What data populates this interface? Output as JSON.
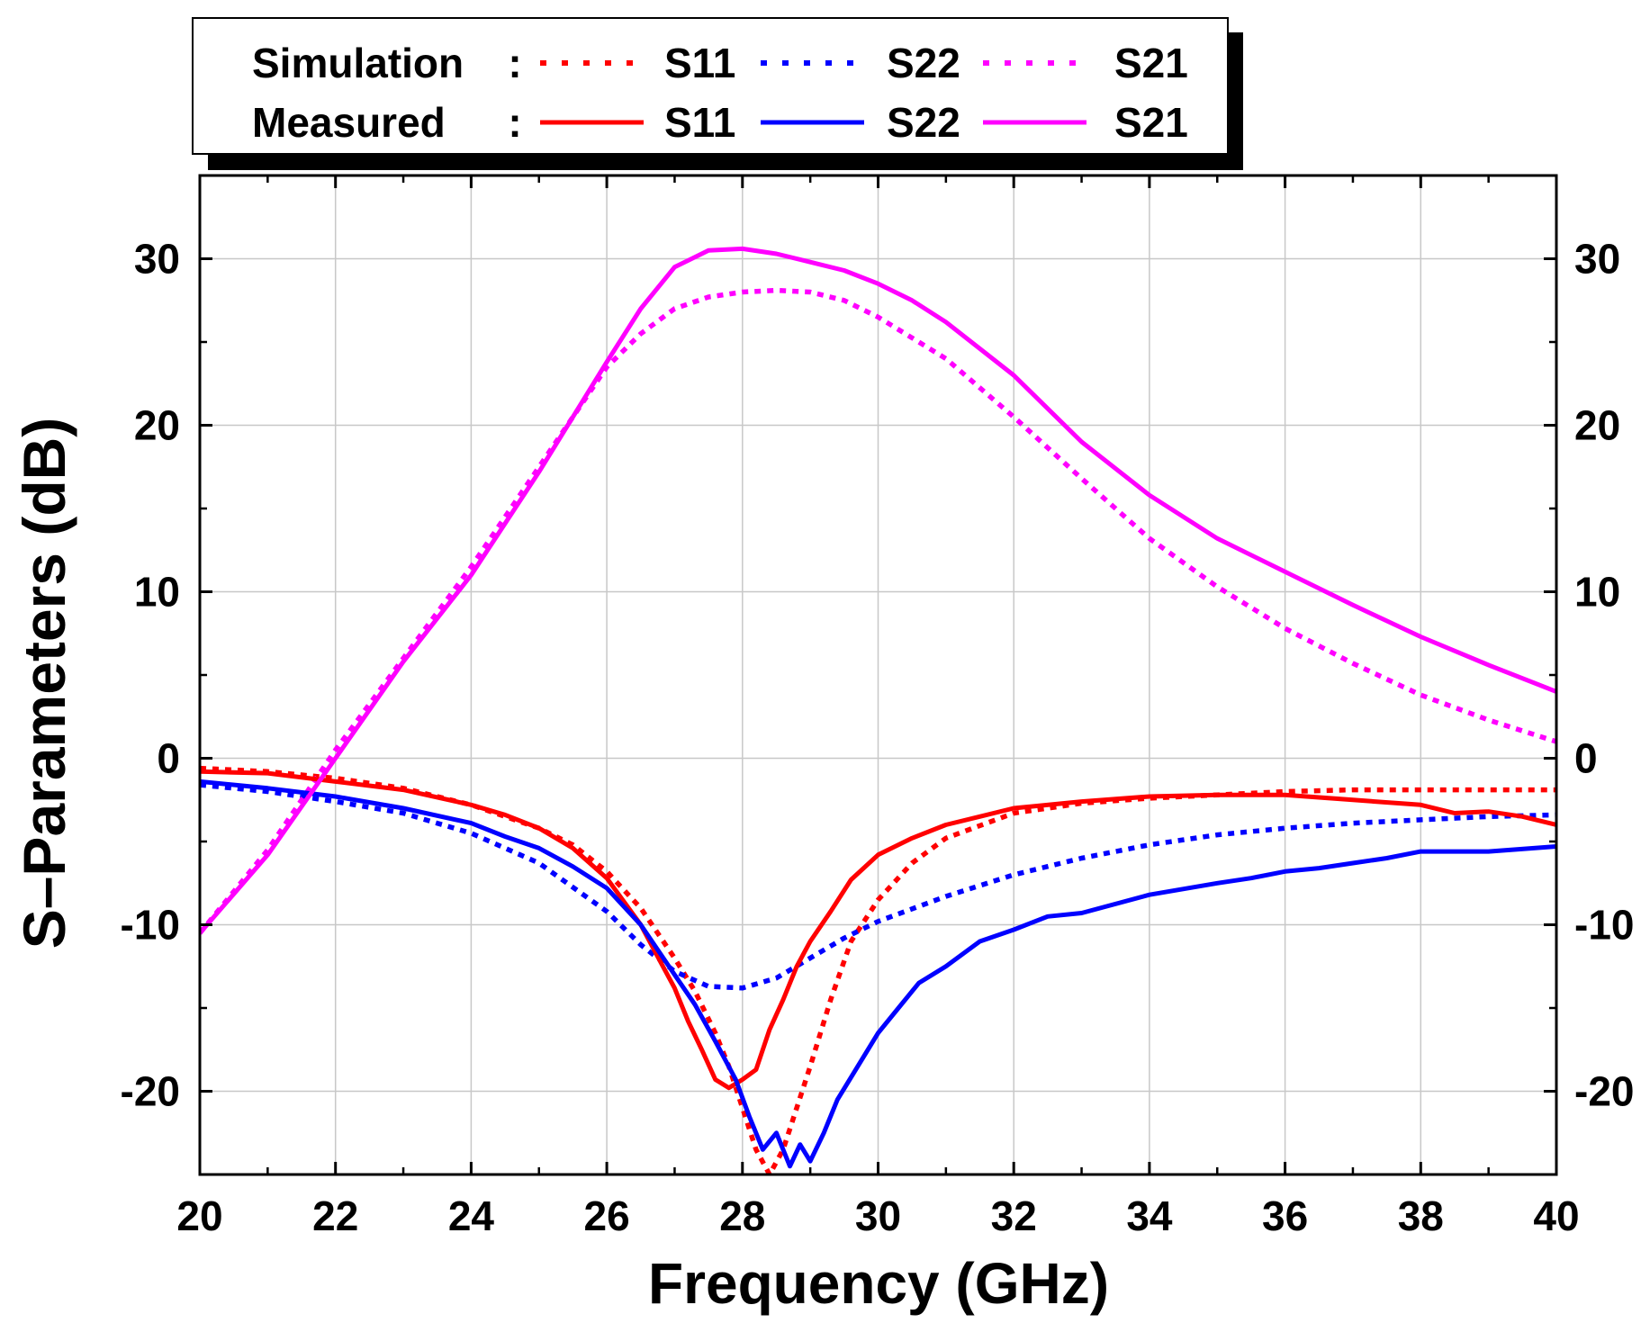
{
  "chart_data": {
    "type": "line",
    "xlabel": "Frequency (GHz)",
    "ylabel": "S–Parameters (dB)",
    "xlim": [
      20,
      40
    ],
    "ylim": [
      -25,
      35
    ],
    "x_ticks": [
      20,
      22,
      24,
      26,
      28,
      30,
      32,
      34,
      36,
      38,
      40
    ],
    "x_tick_labels": [
      "20",
      "22",
      "24",
      "26",
      "28",
      "30",
      "32",
      "34",
      "36",
      "38",
      "40"
    ],
    "y_ticks": [
      -20,
      -10,
      0,
      10,
      20,
      30
    ],
    "y_tick_labels": [
      "-20",
      "-10",
      "0",
      "10",
      "20",
      "30"
    ],
    "grid": true,
    "legend": {
      "position": "top",
      "rows": [
        {
          "label": "Simulation",
          "sep": ":",
          "style": "dotted",
          "entries": [
            {
              "name": "S11",
              "color": "#ff0000"
            },
            {
              "name": "S22",
              "color": "#0000ff"
            },
            {
              "name": "S21",
              "color": "#ff00ff"
            }
          ]
        },
        {
          "label": "Measured",
          "sep": ":",
          "style": "solid",
          "entries": [
            {
              "name": "S11",
              "color": "#ff0000"
            },
            {
              "name": "S22",
              "color": "#0000ff"
            },
            {
              "name": "S21",
              "color": "#ff00ff"
            }
          ]
        }
      ]
    },
    "series": [
      {
        "name": "Simulation S11",
        "style": "dotted",
        "color": "#ff0000",
        "x": [
          20,
          21,
          22,
          23,
          24,
          25,
          25.5,
          26,
          26.5,
          27,
          27.3,
          27.6,
          27.8,
          28.0,
          28.2,
          28.4,
          28.6,
          28.8,
          29.0,
          29.3,
          29.6,
          30,
          30.5,
          31,
          32,
          33,
          34,
          35,
          36,
          37,
          38,
          39,
          40
        ],
        "y": [
          -0.6,
          -0.8,
          -1.2,
          -1.8,
          -2.8,
          -4.2,
          -5.2,
          -6.8,
          -9.0,
          -12.0,
          -14.0,
          -16.5,
          -18.5,
          -21,
          -23.5,
          -25,
          -23.5,
          -21,
          -18.5,
          -14.5,
          -11.0,
          -8.5,
          -6.3,
          -4.8,
          -3.3,
          -2.7,
          -2.4,
          -2.2,
          -2.0,
          -1.9,
          -1.9,
          -1.9,
          -1.9
        ]
      },
      {
        "name": "Simulation S22",
        "style": "dotted",
        "color": "#0000ff",
        "x": [
          20,
          21,
          22,
          23,
          24,
          25,
          26,
          26.5,
          27,
          27.5,
          28,
          28.5,
          29,
          29.5,
          30,
          31,
          32,
          33,
          34,
          35,
          36,
          37,
          38,
          39,
          40
        ],
        "y": [
          -1.6,
          -2.0,
          -2.6,
          -3.3,
          -4.5,
          -6.3,
          -9.2,
          -11.2,
          -12.8,
          -13.7,
          -13.8,
          -13.2,
          -12.0,
          -10.8,
          -9.8,
          -8.3,
          -7.0,
          -6.0,
          -5.2,
          -4.6,
          -4.2,
          -3.9,
          -3.7,
          -3.5,
          -3.4
        ]
      },
      {
        "name": "Simulation S21",
        "style": "dotted",
        "color": "#ff00ff",
        "x": [
          20,
          21,
          22,
          23,
          24,
          25,
          26,
          26.5,
          27,
          27.5,
          28,
          28.5,
          29,
          29.5,
          30,
          31,
          32,
          33,
          34,
          35,
          36,
          37,
          38,
          39,
          40
        ],
        "y": [
          -10.5,
          -5.5,
          0.5,
          6.0,
          11.5,
          17.5,
          23.5,
          25.5,
          27.0,
          27.7,
          28.0,
          28.1,
          28.0,
          27.5,
          26.5,
          24.0,
          20.5,
          16.8,
          13.2,
          10.3,
          7.8,
          5.7,
          3.8,
          2.3,
          1.0
        ]
      },
      {
        "name": "Measured S11",
        "style": "solid",
        "color": "#ff0000",
        "x": [
          20,
          21,
          22,
          23,
          24,
          24.5,
          25,
          25.5,
          26,
          26.5,
          26.8,
          27.0,
          27.2,
          27.4,
          27.6,
          27.8,
          28.0,
          28.2,
          28.4,
          28.6,
          28.8,
          29.0,
          29.3,
          29.6,
          30,
          30.5,
          31,
          31.5,
          32,
          33,
          34,
          35,
          36,
          37,
          38,
          38.5,
          39,
          39.5,
          40
        ],
        "y": [
          -0.8,
          -0.9,
          -1.4,
          -1.9,
          -2.8,
          -3.4,
          -4.2,
          -5.4,
          -7.2,
          -10.0,
          -12.3,
          -13.8,
          -15.8,
          -17.5,
          -19.3,
          -19.8,
          -19.3,
          -18.7,
          -16.3,
          -14.5,
          -12.5,
          -11.0,
          -9.2,
          -7.3,
          -5.8,
          -4.8,
          -4.0,
          -3.5,
          -3.0,
          -2.6,
          -2.3,
          -2.2,
          -2.2,
          -2.5,
          -2.8,
          -3.3,
          -3.2,
          -3.5,
          -4.0
        ]
      },
      {
        "name": "Measured S22",
        "style": "solid",
        "color": "#0000ff",
        "x": [
          20,
          21,
          22,
          23,
          24,
          24.5,
          25,
          25.5,
          26,
          26.5,
          27,
          27.3,
          27.6,
          27.9,
          28.1,
          28.3,
          28.5,
          28.7,
          28.85,
          29.0,
          29.2,
          29.4,
          29.7,
          30,
          30.3,
          30.6,
          31,
          31.5,
          32,
          32.5,
          33,
          34,
          35,
          35.5,
          36,
          36.5,
          37,
          37.5,
          38,
          39,
          40
        ],
        "y": [
          -1.4,
          -1.8,
          -2.3,
          -3.0,
          -3.9,
          -4.7,
          -5.4,
          -6.5,
          -7.8,
          -10.0,
          -13.0,
          -14.8,
          -17.0,
          -19.3,
          -21.5,
          -23.5,
          -22.5,
          -24.5,
          -23.2,
          -24.2,
          -22.5,
          -20.5,
          -18.5,
          -16.5,
          -15.0,
          -13.5,
          -12.5,
          -11.0,
          -10.3,
          -9.5,
          -9.3,
          -8.2,
          -7.5,
          -7.2,
          -6.8,
          -6.6,
          -6.3,
          -6.0,
          -5.6,
          -5.6,
          -5.3
        ]
      },
      {
        "name": "Measured S21",
        "style": "solid",
        "color": "#ff00ff",
        "x": [
          20,
          21,
          22,
          23,
          24,
          25,
          26,
          26.5,
          27,
          27.5,
          28,
          28.5,
          29,
          29.5,
          30,
          30.5,
          31,
          32,
          33,
          34,
          35,
          36,
          37,
          38,
          39,
          40
        ],
        "y": [
          -10.5,
          -5.8,
          0.0,
          5.8,
          11.0,
          17.2,
          23.8,
          27.0,
          29.5,
          30.5,
          30.6,
          30.3,
          29.8,
          29.3,
          28.5,
          27.5,
          26.2,
          23.0,
          19.0,
          15.8,
          13.2,
          11.2,
          9.2,
          7.3,
          5.6,
          4.0
        ]
      }
    ]
  }
}
